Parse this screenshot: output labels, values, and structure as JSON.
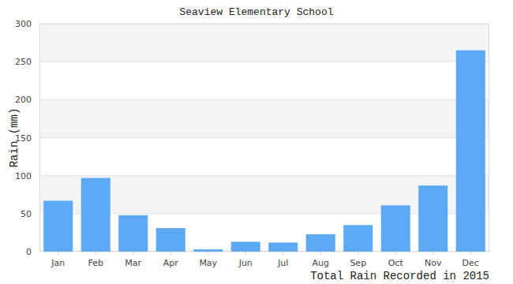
{
  "chart_data": {
    "type": "bar",
    "title": "Seaview Elementary School",
    "x_label": "Total Rain Recorded in 2015",
    "y_label": "Rain (mm)",
    "categories": [
      "Jan",
      "Feb",
      "Mar",
      "Apr",
      "May",
      "Jun",
      "Jul",
      "Aug",
      "Sep",
      "Oct",
      "Nov",
      "Dec"
    ],
    "values": [
      67,
      97,
      48,
      31,
      3,
      13,
      12,
      23,
      35,
      61,
      87,
      265
    ],
    "color": "#5ea9f6",
    "ylim": [
      0,
      300
    ],
    "yticks": [
      0,
      50,
      100,
      150,
      200,
      250,
      300
    ],
    "grid": true
  }
}
